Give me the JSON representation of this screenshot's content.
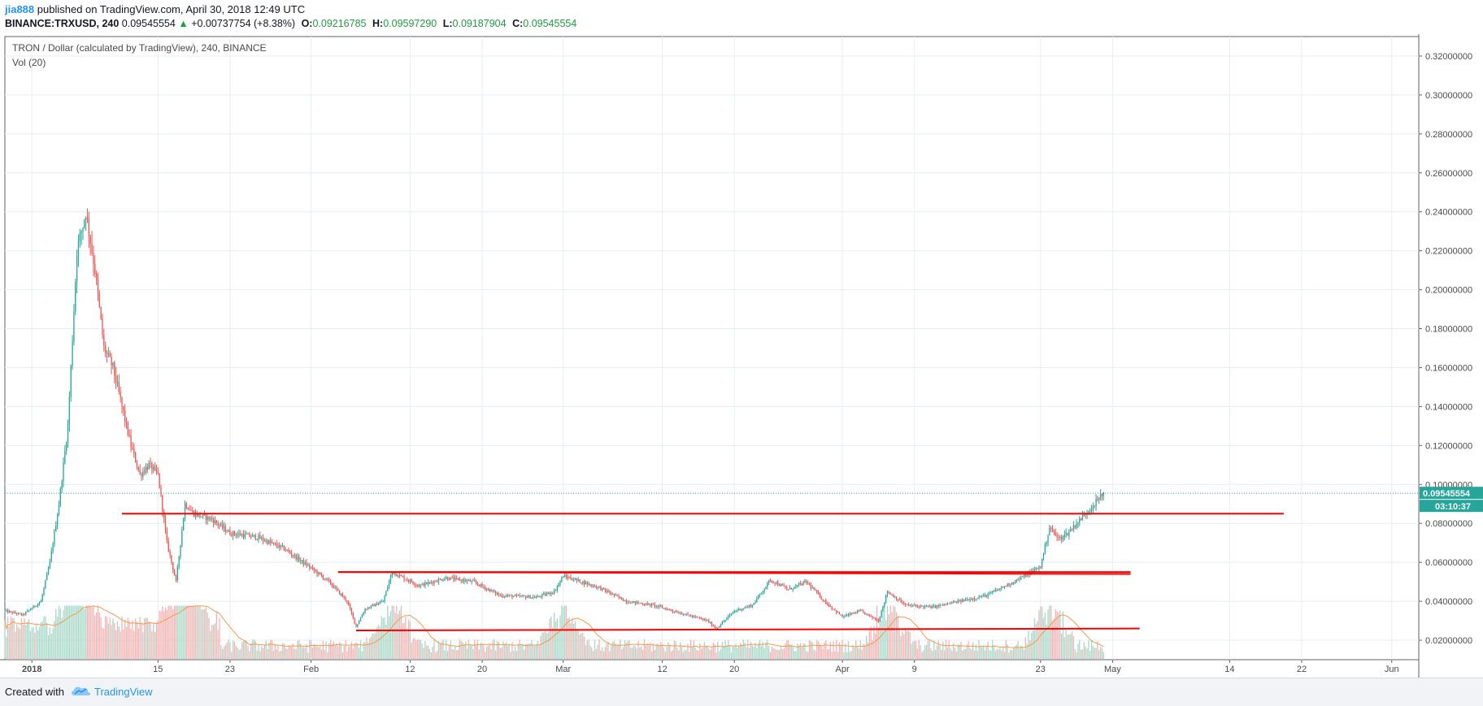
{
  "header": {
    "author": "jia888",
    "published_text": "published on TradingView.com, April 30, 2018 12:49 UTC",
    "symbol": "BINANCE:TRXUSD, 240",
    "last_price": "0.09545554",
    "change_arrow": "▲",
    "change": "+0.00737754 (+8.38%)",
    "open_label": "O:",
    "open": "0.09216785",
    "high_label": "H:",
    "high": "0.09597290",
    "low_label": "L:",
    "low": "0.09187904",
    "close_label": "C:",
    "close": "0.09545554"
  },
  "legend": {
    "title": "TRON / Dollar (calculated by TradingView), 240, BINANCE",
    "volume": "Vol (20)"
  },
  "price_tags": {
    "last_price": "0.09545554",
    "countdown": "03:10:37"
  },
  "footer": {
    "created_with": "Created with",
    "brand": "TradingView",
    "logo_icon": "tradingview-cloud-icon"
  },
  "colors": {
    "up": "#26a69a",
    "down": "#ef5350",
    "volume_up": "#a8d8c8",
    "volume_down": "#f4b4b4",
    "volume_ma": "#f39c50",
    "drawing_lines": "#ff0000",
    "grid": "#e8eef2"
  },
  "chart_data": {
    "type": "candlestick",
    "title": "TRON / Dollar (calculated by TradingView), 240, BINANCE",
    "symbol": "BINANCE:TRXUSD",
    "interval": "240",
    "x_axis": {
      "type": "date",
      "range": [
        "2017-12-29",
        "2018-06-04"
      ],
      "tick_labels": [
        "2018",
        "15",
        "23",
        "Feb",
        "12",
        "20",
        "Mar",
        "12",
        "20",
        "Apr",
        "9",
        "23",
        "May",
        "14",
        "22",
        "Jun"
      ],
      "tick_dates": [
        "2018-01-01",
        "2018-01-15",
        "2018-01-23",
        "2018-02-01",
        "2018-02-12",
        "2018-02-20",
        "2018-03-01",
        "2018-03-12",
        "2018-03-20",
        "2018-04-01",
        "2018-04-09",
        "2018-04-23",
        "2018-05-01",
        "2018-05-14",
        "2018-05-22",
        "2018-06-01"
      ]
    },
    "y_axis": {
      "ylim": [
        0.01,
        0.33
      ],
      "tick_labels": [
        "0.02000000",
        "0.04000000",
        "0.06000000",
        "0.08000000",
        "0.10000000",
        "0.12000000",
        "0.14000000",
        "0.16000000",
        "0.18000000",
        "0.20000000",
        "0.22000000",
        "0.24000000",
        "0.26000000",
        "0.28000000",
        "0.30000000",
        "0.32000000"
      ],
      "tick_values": [
        0.02,
        0.04,
        0.06,
        0.08,
        0.1,
        0.12,
        0.14,
        0.16,
        0.18,
        0.2,
        0.22,
        0.24,
        0.26,
        0.28,
        0.3,
        0.32
      ]
    },
    "grid": true,
    "price_path": [
      [
        "2017-12-29",
        0.035
      ],
      [
        "2017-12-31",
        0.033
      ],
      [
        "2018-01-02",
        0.04
      ],
      [
        "2018-01-03",
        0.06
      ],
      [
        "2018-01-04",
        0.09
      ],
      [
        "2018-01-05",
        0.13
      ],
      [
        "2018-01-06",
        0.22
      ],
      [
        "2018-01-07",
        0.24
      ],
      [
        "2018-01-08",
        0.21
      ],
      [
        "2018-01-09",
        0.17
      ],
      [
        "2018-01-10",
        0.16
      ],
      [
        "2018-01-11",
        0.14
      ],
      [
        "2018-01-12",
        0.12
      ],
      [
        "2018-01-13",
        0.105
      ],
      [
        "2018-01-14",
        0.11
      ],
      [
        "2018-01-15",
        0.105
      ],
      [
        "2018-01-16",
        0.07
      ],
      [
        "2018-01-17",
        0.05
      ],
      [
        "2018-01-18",
        0.09
      ],
      [
        "2018-01-19",
        0.085
      ],
      [
        "2018-01-21",
        0.082
      ],
      [
        "2018-01-23",
        0.075
      ],
      [
        "2018-01-26",
        0.073
      ],
      [
        "2018-01-29",
        0.067
      ],
      [
        "2018-02-01",
        0.057
      ],
      [
        "2018-02-03",
        0.05
      ],
      [
        "2018-02-05",
        0.04
      ],
      [
        "2018-02-06",
        0.027
      ],
      [
        "2018-02-07",
        0.036
      ],
      [
        "2018-02-09",
        0.04
      ],
      [
        "2018-02-10",
        0.055
      ],
      [
        "2018-02-13",
        0.048
      ],
      [
        "2018-02-16",
        0.052
      ],
      [
        "2018-02-19",
        0.05
      ],
      [
        "2018-02-22",
        0.043
      ],
      [
        "2018-02-26",
        0.042
      ],
      [
        "2018-02-28",
        0.045
      ],
      [
        "2018-03-01",
        0.053
      ],
      [
        "2018-03-03",
        0.05
      ],
      [
        "2018-03-05",
        0.047
      ],
      [
        "2018-03-08",
        0.04
      ],
      [
        "2018-03-11",
        0.038
      ],
      [
        "2018-03-14",
        0.034
      ],
      [
        "2018-03-17",
        0.03
      ],
      [
        "2018-03-18",
        0.026
      ],
      [
        "2018-03-20",
        0.035
      ],
      [
        "2018-03-22",
        0.038
      ],
      [
        "2018-03-24",
        0.051
      ],
      [
        "2018-03-26",
        0.046
      ],
      [
        "2018-03-28",
        0.05
      ],
      [
        "2018-03-30",
        0.04
      ],
      [
        "2018-04-01",
        0.032
      ],
      [
        "2018-04-03",
        0.035
      ],
      [
        "2018-04-05",
        0.03
      ],
      [
        "2018-04-06",
        0.045
      ],
      [
        "2018-04-08",
        0.038
      ],
      [
        "2018-04-11",
        0.037
      ],
      [
        "2018-04-14",
        0.04
      ],
      [
        "2018-04-17",
        0.043
      ],
      [
        "2018-04-20",
        0.05
      ],
      [
        "2018-04-22",
        0.055
      ],
      [
        "2018-04-23",
        0.058
      ],
      [
        "2018-04-24",
        0.078
      ],
      [
        "2018-04-25",
        0.072
      ],
      [
        "2018-04-26",
        0.075
      ],
      [
        "2018-04-28",
        0.085
      ],
      [
        "2018-04-30",
        0.09545554
      ]
    ],
    "volume": {
      "label": "Vol (20)",
      "peak_dates": [
        "2018-01-06",
        "2018-01-18",
        "2018-02-10",
        "2018-03-01",
        "2018-04-06",
        "2018-04-24"
      ]
    },
    "drawings": [
      {
        "type": "horizontal_line",
        "price": 0.085,
        "from": "2018-01-11",
        "to": "2018-05-20"
      },
      {
        "type": "horizontal_line",
        "price": 0.055,
        "from": "2018-02-04",
        "to": "2018-05-03"
      },
      {
        "type": "horizontal_line",
        "price": 0.055,
        "from": "2018-02-04",
        "to": "2018-05-03",
        "price_end": 0.054
      },
      {
        "type": "horizontal_line",
        "price": 0.025,
        "from": "2018-02-06",
        "to": "2018-05-04",
        "price_end": 0.026
      }
    ],
    "last_price_line": 0.09545554
  }
}
